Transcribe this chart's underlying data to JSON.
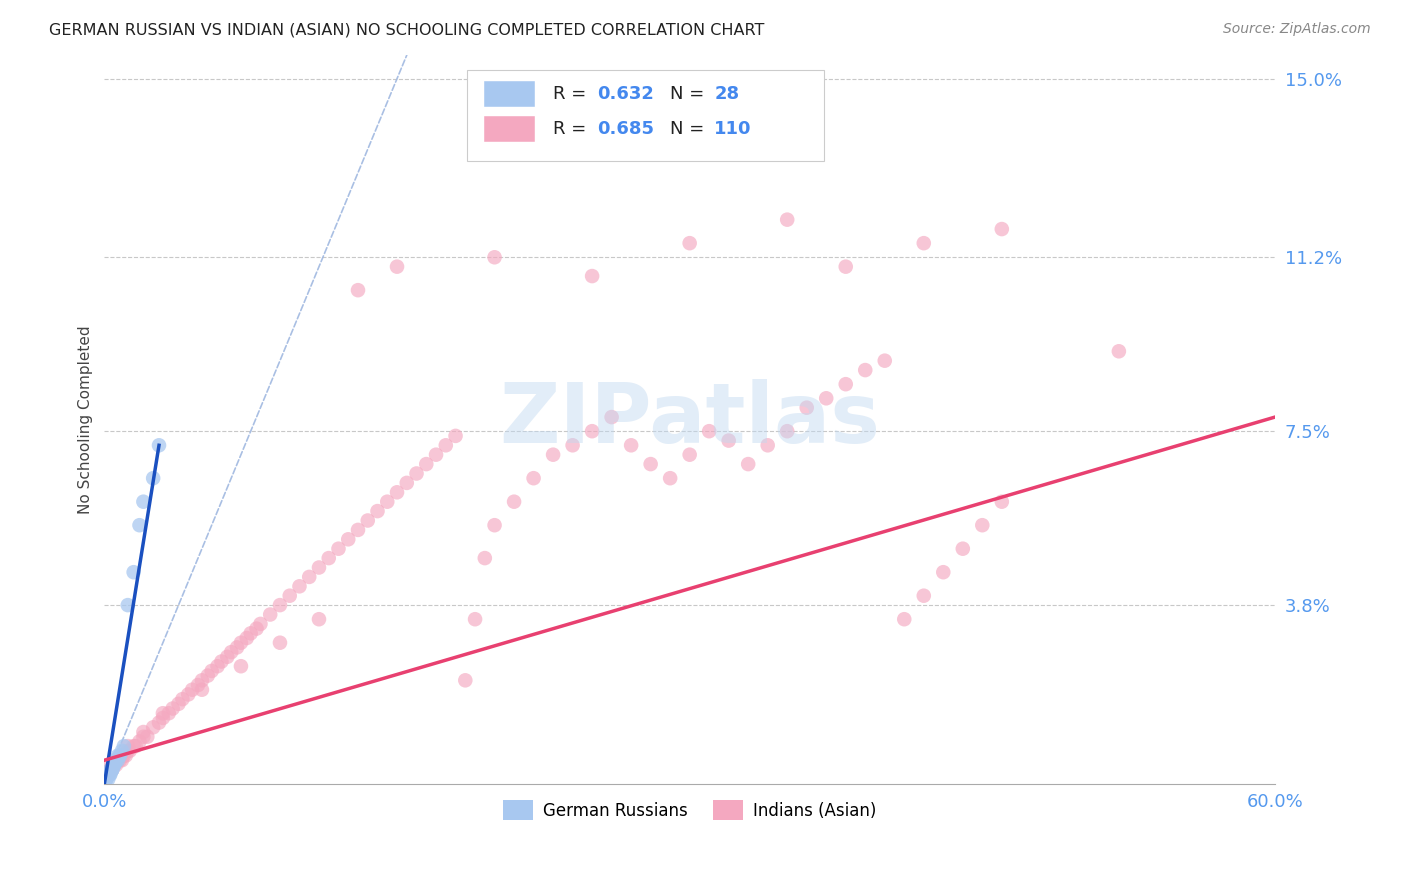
{
  "title": "GERMAN RUSSIAN VS INDIAN (ASIAN) NO SCHOOLING COMPLETED CORRELATION CHART",
  "source": "Source: ZipAtlas.com",
  "ylabel": "No Schooling Completed",
  "r_german": 0.632,
  "n_german": 28,
  "r_indian": 0.685,
  "n_indian": 110,
  "xlim": [
    0.0,
    0.6
  ],
  "ylim": [
    0.0,
    0.155
  ],
  "yticks": [
    0.038,
    0.075,
    0.112,
    0.15
  ],
  "ytick_labels": [
    "3.8%",
    "7.5%",
    "11.2%",
    "15.0%"
  ],
  "xtick_positions": [
    0.0,
    0.6
  ],
  "xtick_labels": [
    "0.0%",
    "60.0%"
  ],
  "color_german": "#A8C8F0",
  "color_indian": "#F4A8C0",
  "color_german_line": "#1A50C0",
  "color_indian_line": "#E84070",
  "color_diag": "#A0B8E0",
  "background_color": "#FFFFFF",
  "watermark_text": "ZIPatlas",
  "german_x": [
    0.001,
    0.001,
    0.002,
    0.002,
    0.002,
    0.003,
    0.003,
    0.003,
    0.004,
    0.004,
    0.004,
    0.005,
    0.005,
    0.005,
    0.006,
    0.006,
    0.007,
    0.007,
    0.008,
    0.008,
    0.009,
    0.01,
    0.012,
    0.015,
    0.018,
    0.02,
    0.025,
    0.028
  ],
  "german_y": [
    0.001,
    0.001,
    0.001,
    0.002,
    0.002,
    0.002,
    0.002,
    0.003,
    0.003,
    0.003,
    0.003,
    0.004,
    0.004,
    0.004,
    0.005,
    0.005,
    0.005,
    0.006,
    0.006,
    0.006,
    0.007,
    0.008,
    0.038,
    0.045,
    0.055,
    0.06,
    0.065,
    0.072
  ],
  "indian_x": [
    0.002,
    0.003,
    0.004,
    0.005,
    0.006,
    0.007,
    0.008,
    0.009,
    0.01,
    0.011,
    0.012,
    0.013,
    0.015,
    0.016,
    0.018,
    0.02,
    0.022,
    0.025,
    0.028,
    0.03,
    0.033,
    0.035,
    0.038,
    0.04,
    0.043,
    0.045,
    0.048,
    0.05,
    0.053,
    0.055,
    0.058,
    0.06,
    0.063,
    0.065,
    0.068,
    0.07,
    0.073,
    0.075,
    0.078,
    0.08,
    0.085,
    0.09,
    0.095,
    0.1,
    0.105,
    0.11,
    0.115,
    0.12,
    0.125,
    0.13,
    0.135,
    0.14,
    0.145,
    0.15,
    0.155,
    0.16,
    0.165,
    0.17,
    0.175,
    0.18,
    0.185,
    0.19,
    0.195,
    0.2,
    0.21,
    0.22,
    0.23,
    0.24,
    0.25,
    0.26,
    0.27,
    0.28,
    0.29,
    0.3,
    0.31,
    0.32,
    0.33,
    0.34,
    0.35,
    0.36,
    0.37,
    0.38,
    0.39,
    0.4,
    0.41,
    0.42,
    0.43,
    0.44,
    0.45,
    0.46,
    0.003,
    0.005,
    0.008,
    0.012,
    0.02,
    0.03,
    0.05,
    0.07,
    0.09,
    0.11,
    0.13,
    0.15,
    0.2,
    0.25,
    0.3,
    0.35,
    0.38,
    0.42,
    0.46,
    0.52
  ],
  "indian_y": [
    0.002,
    0.003,
    0.003,
    0.004,
    0.004,
    0.005,
    0.005,
    0.005,
    0.006,
    0.006,
    0.007,
    0.007,
    0.008,
    0.008,
    0.009,
    0.01,
    0.01,
    0.012,
    0.013,
    0.014,
    0.015,
    0.016,
    0.017,
    0.018,
    0.019,
    0.02,
    0.021,
    0.022,
    0.023,
    0.024,
    0.025,
    0.026,
    0.027,
    0.028,
    0.029,
    0.03,
    0.031,
    0.032,
    0.033,
    0.034,
    0.036,
    0.038,
    0.04,
    0.042,
    0.044,
    0.046,
    0.048,
    0.05,
    0.052,
    0.054,
    0.056,
    0.058,
    0.06,
    0.062,
    0.064,
    0.066,
    0.068,
    0.07,
    0.072,
    0.074,
    0.022,
    0.035,
    0.048,
    0.055,
    0.06,
    0.065,
    0.07,
    0.072,
    0.075,
    0.078,
    0.072,
    0.068,
    0.065,
    0.07,
    0.075,
    0.073,
    0.068,
    0.072,
    0.075,
    0.08,
    0.082,
    0.085,
    0.088,
    0.09,
    0.035,
    0.04,
    0.045,
    0.05,
    0.055,
    0.06,
    0.004,
    0.005,
    0.006,
    0.008,
    0.011,
    0.015,
    0.02,
    0.025,
    0.03,
    0.035,
    0.105,
    0.11,
    0.112,
    0.108,
    0.115,
    0.12,
    0.11,
    0.115,
    0.118,
    0.092
  ],
  "german_line_x": [
    0.0,
    0.028
  ],
  "german_line_y": [
    0.0,
    0.072
  ],
  "indian_line_x": [
    0.0,
    0.6
  ],
  "indian_line_y": [
    0.005,
    0.078
  ],
  "diag_line_x": [
    0.0,
    0.155
  ],
  "diag_line_y": [
    0.0,
    0.155
  ]
}
